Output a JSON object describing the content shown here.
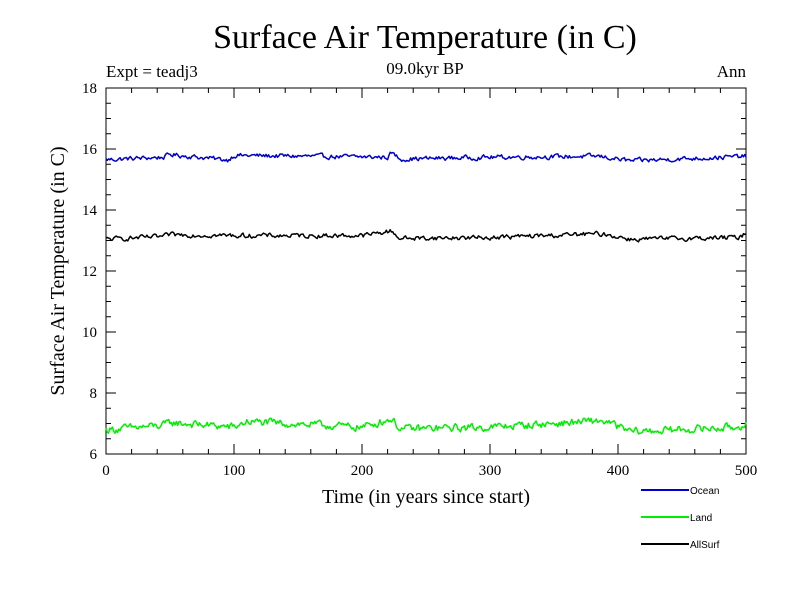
{
  "chart_data": {
    "type": "line",
    "title": "Surface Air Temperature (in C)",
    "subtitle": "09.0kyr BP",
    "left_label": "Expt = teadj3",
    "right_label": "Ann",
    "xlabel": "Time (in years since start)",
    "ylabel": "Surface Air Temperature (in C)",
    "xlim": [
      0,
      500
    ],
    "ylim": [
      6,
      18
    ],
    "xticks": [
      0,
      100,
      200,
      300,
      400,
      500
    ],
    "xtick_labels": [
      "0",
      "100",
      "200",
      "300",
      "400",
      "500"
    ],
    "yticks": [
      6,
      8,
      10,
      12,
      14,
      16,
      18
    ],
    "ytick_labels": [
      "6",
      "8",
      "10",
      "12",
      "14",
      "16",
      "18"
    ],
    "legend_position": "bottom-right",
    "series": [
      {
        "name": "Ocean",
        "color": "#0000cc",
        "mean": 15.7,
        "amplitude": 0.12,
        "anchors": [
          [
            0,
            15.62
          ],
          [
            45,
            15.75
          ],
          [
            50,
            15.9
          ],
          [
            95,
            15.6
          ],
          [
            100,
            15.85
          ],
          [
            220,
            15.75
          ],
          [
            223,
            16.0
          ],
          [
            230,
            15.65
          ],
          [
            300,
            15.75
          ],
          [
            385,
            15.8
          ],
          [
            410,
            15.55
          ],
          [
            500,
            15.8
          ]
        ]
      },
      {
        "name": "Land",
        "color": "#00ee00",
        "mean": 6.85,
        "amplitude": 0.2,
        "anchors": [
          [
            0,
            6.75
          ],
          [
            45,
            7.0
          ],
          [
            50,
            7.15
          ],
          [
            100,
            6.9
          ],
          [
            110,
            7.2
          ],
          [
            200,
            6.9
          ],
          [
            223,
            7.35
          ],
          [
            230,
            6.8
          ],
          [
            300,
            6.9
          ],
          [
            388,
            7.25
          ],
          [
            410,
            6.65
          ],
          [
            495,
            6.9
          ],
          [
            500,
            7.2
          ]
        ]
      },
      {
        "name": "AllSurf",
        "color": "#000000",
        "mean": 13.1,
        "amplitude": 0.12,
        "anchors": [
          [
            0,
            13.0
          ],
          [
            45,
            13.15
          ],
          [
            50,
            13.25
          ],
          [
            100,
            13.2
          ],
          [
            200,
            13.2
          ],
          [
            223,
            13.45
          ],
          [
            230,
            13.05
          ],
          [
            300,
            13.1
          ],
          [
            388,
            13.3
          ],
          [
            410,
            13.0
          ],
          [
            495,
            13.1
          ],
          [
            500,
            13.35
          ]
        ]
      }
    ]
  }
}
